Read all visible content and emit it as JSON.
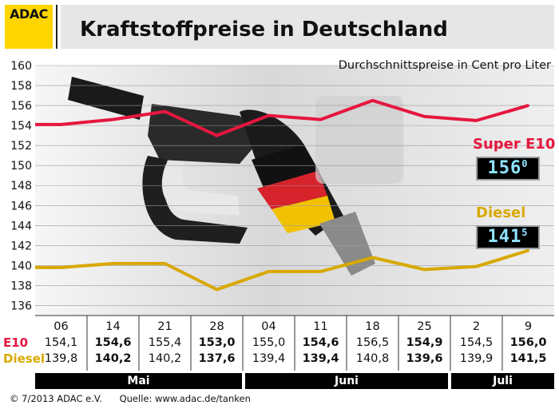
{
  "header": {
    "logo_text": "ADAC",
    "title": "Kraftstoffpreise in Deutschland",
    "subtitle": "Durchschnittspreise in Cent pro Liter"
  },
  "colors": {
    "e10": "#e5173f",
    "diesel": "#d9a800",
    "logo_bg": "#ffd500",
    "display_digits": "#8fe3ff"
  },
  "legend": {
    "e10_label": "Super E10",
    "e10_display_main": "156",
    "e10_display_sup": "0",
    "diesel_label": "Diesel",
    "diesel_display_main": "141",
    "diesel_display_sup": "5"
  },
  "table": {
    "row_e10_label": "E10",
    "row_diesel_label": "Diesel",
    "days": [
      "06",
      "14",
      "21",
      "28",
      "04",
      "11",
      "18",
      "25",
      "2",
      "9"
    ],
    "e10": [
      "154,1",
      "154,6",
      "155,4",
      "153,0",
      "155,0",
      "154,6",
      "156,5",
      "154,9",
      "154,5",
      "156,0"
    ],
    "diesel": [
      "139,8",
      "140,2",
      "140,2",
      "137,6",
      "139,4",
      "139,4",
      "140,8",
      "139,6",
      "139,9",
      "141,5"
    ],
    "bold_columns": [
      1,
      3,
      5,
      7,
      9
    ]
  },
  "months": [
    "Mai",
    "Juni",
    "Juli"
  ],
  "footer": {
    "copyright": "© 7/2013  ADAC e.V.",
    "source": "Quelle: www.adac.de/tanken"
  },
  "chart_data": {
    "type": "line",
    "ylim": [
      135,
      160
    ],
    "yticks": [
      136,
      138,
      140,
      142,
      144,
      146,
      148,
      150,
      152,
      154,
      156,
      158,
      160
    ],
    "categories": [
      "06",
      "14",
      "21",
      "28",
      "04",
      "11",
      "18",
      "25",
      "2",
      "9"
    ],
    "series": [
      {
        "name": "Super E10",
        "values": [
          154.1,
          154.6,
          155.4,
          153.0,
          155.0,
          154.6,
          156.5,
          154.9,
          154.5,
          156.0
        ]
      },
      {
        "name": "Diesel",
        "values": [
          139.8,
          140.2,
          140.2,
          137.6,
          139.4,
          139.4,
          140.8,
          139.6,
          139.9,
          141.5
        ]
      }
    ],
    "grid": true
  }
}
